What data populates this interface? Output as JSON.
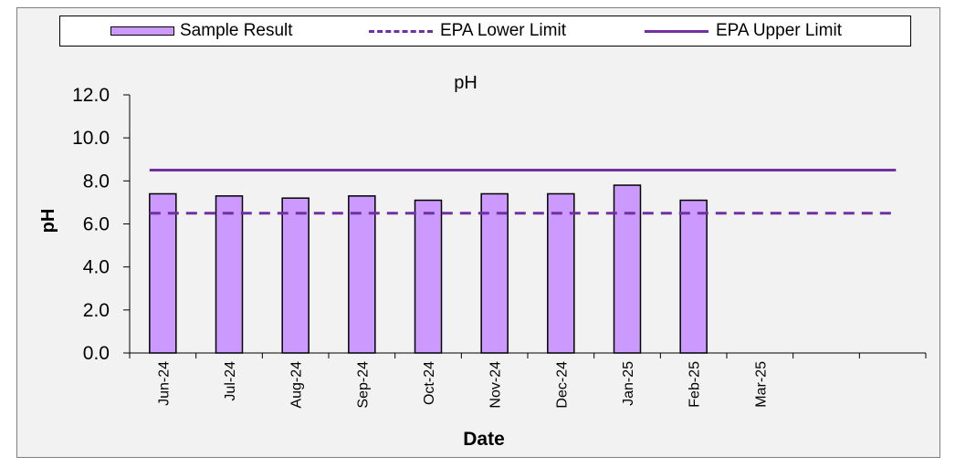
{
  "legend": {
    "sample": "Sample Result",
    "lower": "EPA Lower Limit",
    "upper": "EPA Upper Limit"
  },
  "colors": {
    "bar_fill": "#cc99ff",
    "limit_line": "#7030a0",
    "frame_bg": "#f2f2f2"
  },
  "chart_data": {
    "type": "bar",
    "title": "pH",
    "xlabel": "Date",
    "ylabel": "pH",
    "ylim": [
      0,
      12
    ],
    "yticks": [
      "0.0",
      "2.0",
      "4.0",
      "6.0",
      "8.0",
      "10.0",
      "12.0"
    ],
    "categories": [
      "Jun-24",
      "Jul-24",
      "Aug-24",
      "Sep-24",
      "Oct-24",
      "Nov-24",
      "Dec-24",
      "Jan-25",
      "Feb-25",
      "Mar-25",
      "",
      ""
    ],
    "series": [
      {
        "name": "Sample Result",
        "values": [
          7.4,
          7.3,
          7.2,
          7.3,
          7.1,
          7.4,
          7.4,
          7.8,
          7.1,
          null,
          null,
          null
        ]
      }
    ],
    "reference_lines": [
      {
        "name": "EPA Lower Limit",
        "value": 6.5,
        "style": "dashed"
      },
      {
        "name": "EPA Upper Limit",
        "value": 8.5,
        "style": "solid"
      }
    ],
    "grid": false,
    "legend_position": "top"
  }
}
